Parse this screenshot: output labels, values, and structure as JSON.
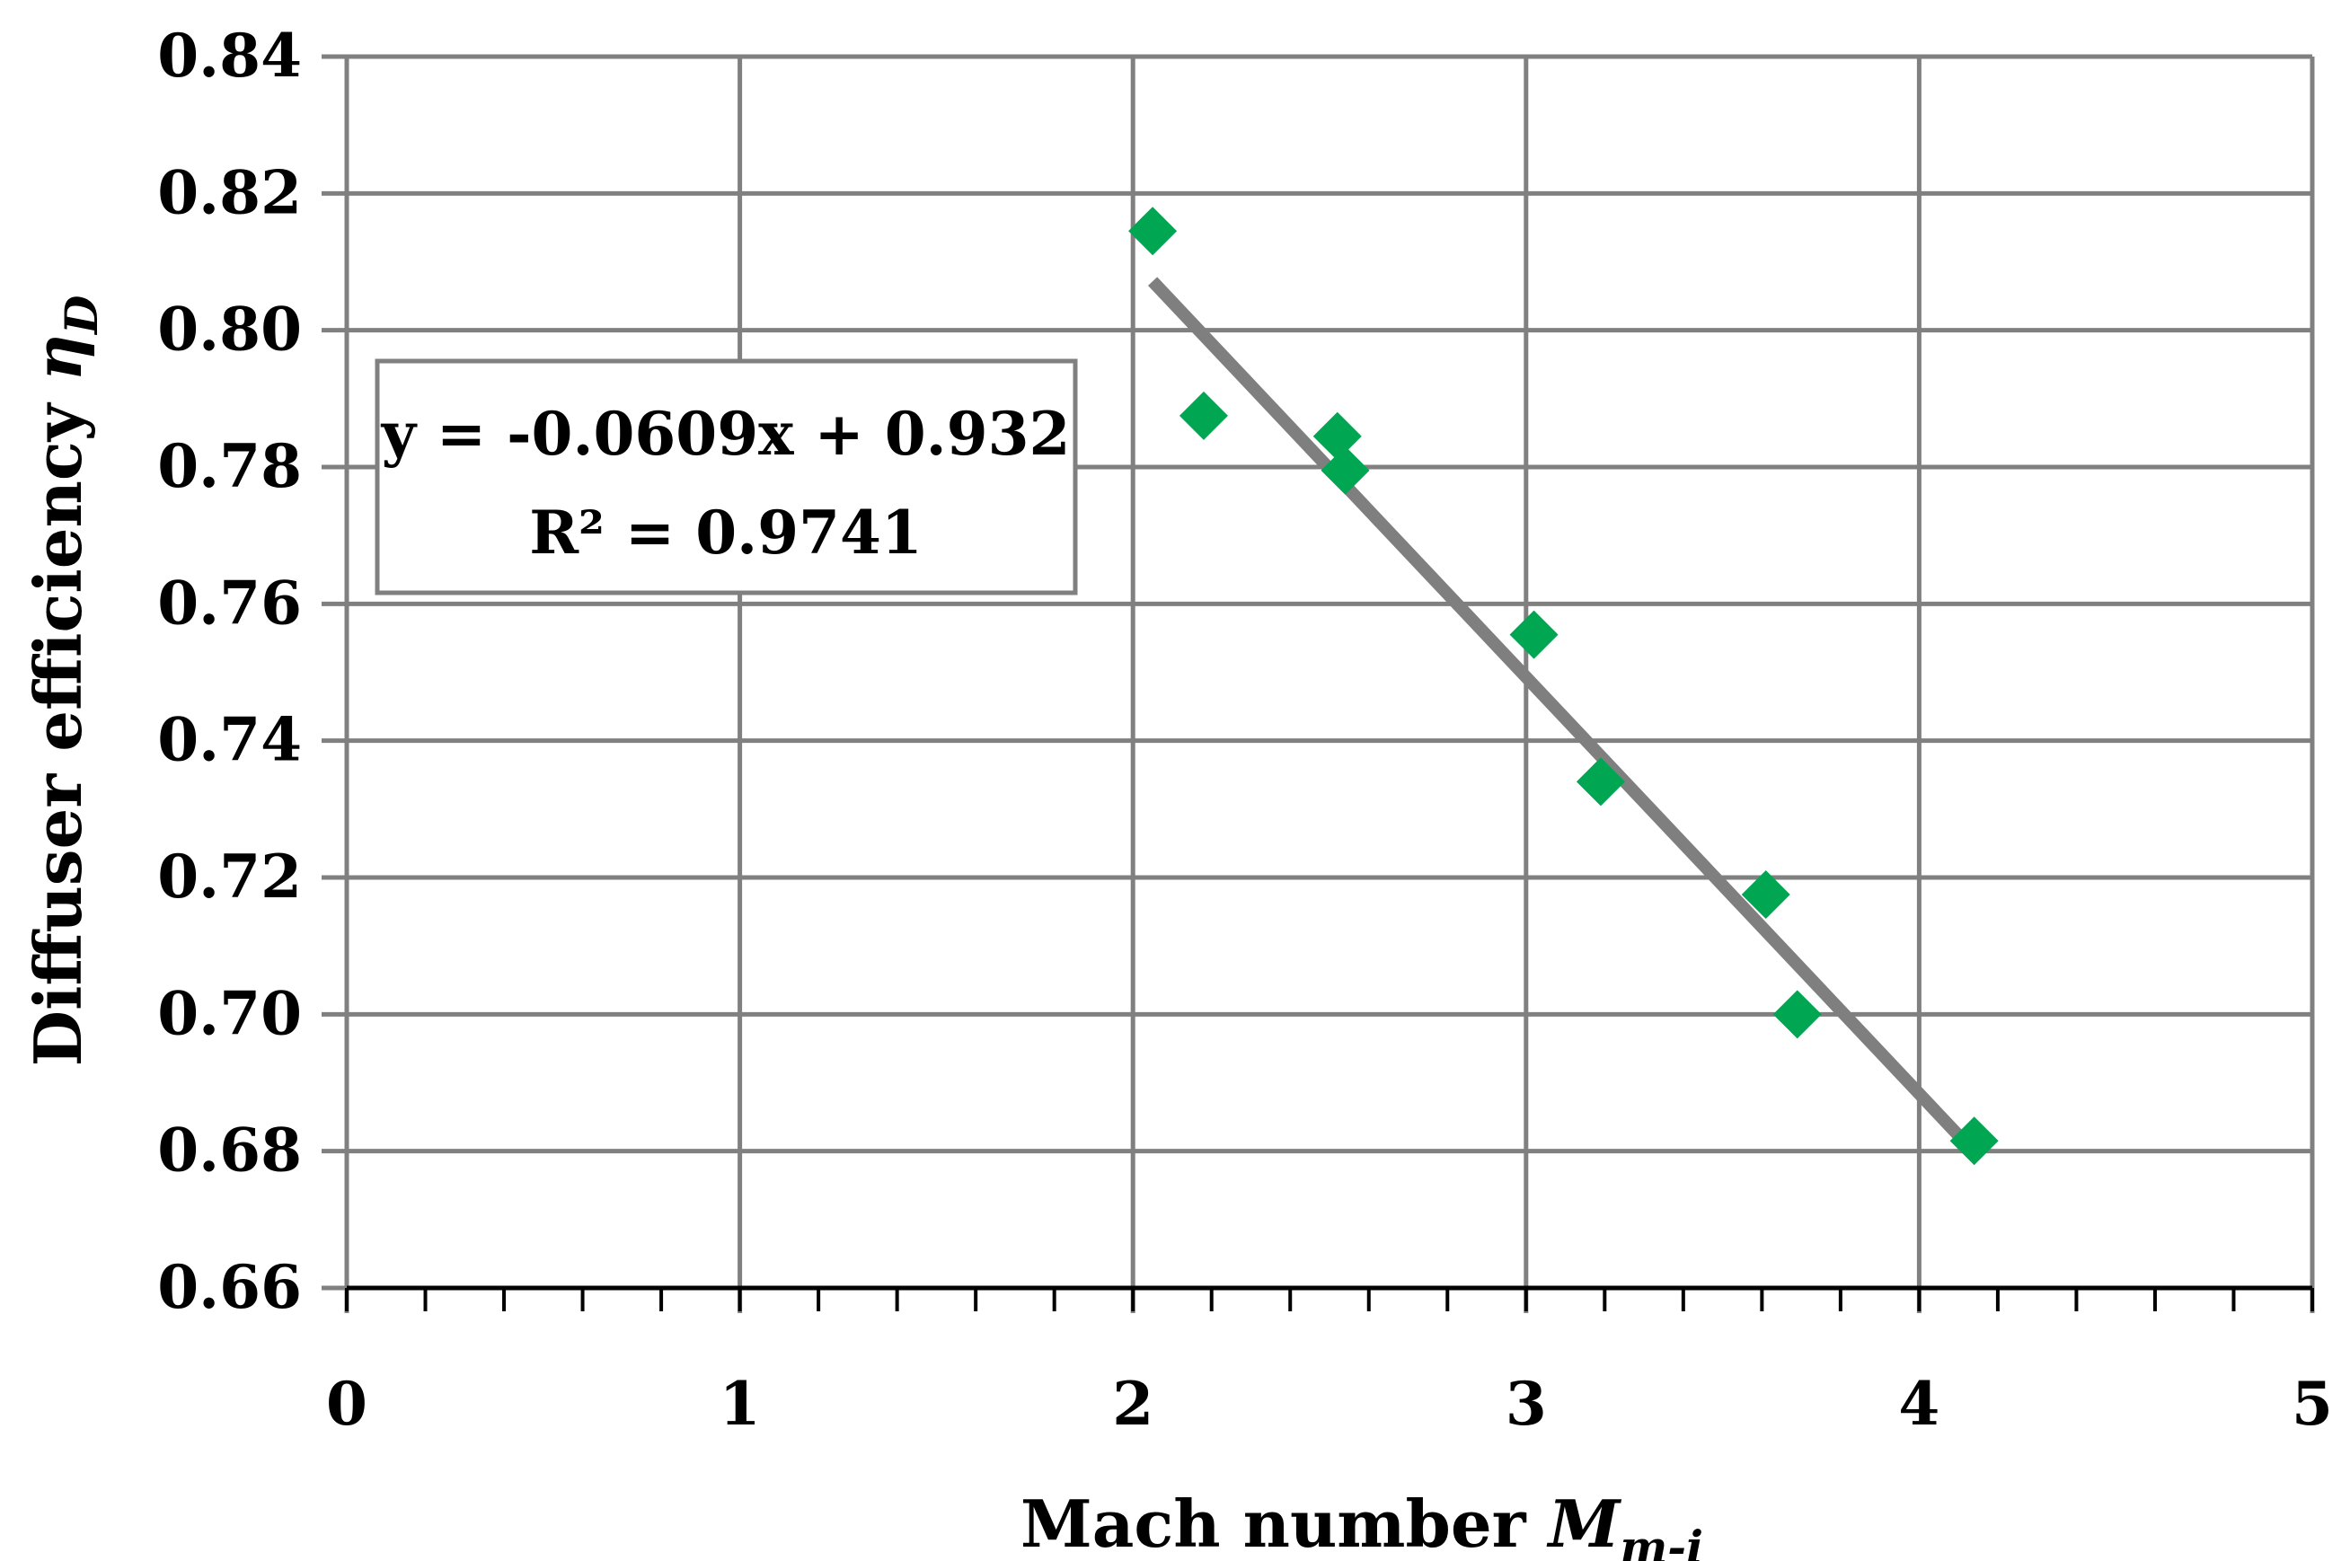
{
  "chart_data": {
    "type": "scatter",
    "title": "",
    "xlabel": {
      "main": "Mach number ",
      "symbol": "M",
      "subscript": "m-i"
    },
    "ylabel": {
      "main": "Diffuser efficiency ",
      "symbol": "η",
      "subscript": "D"
    },
    "xlim": [
      0,
      5
    ],
    "ylim": [
      0.66,
      0.84
    ],
    "x_ticks": [
      "0",
      "1",
      "2",
      "3",
      "4",
      "5"
    ],
    "y_ticks": [
      "0.66",
      "0.68",
      "0.70",
      "0.72",
      "0.74",
      "0.76",
      "0.78",
      "0.80",
      "0.82",
      "0.84"
    ],
    "grid": true,
    "points": [
      {
        "x": 2.05,
        "y": 0.8145
      },
      {
        "x": 2.18,
        "y": 0.7875
      },
      {
        "x": 2.52,
        "y": 0.7845
      },
      {
        "x": 2.54,
        "y": 0.7795
      },
      {
        "x": 3.02,
        "y": 0.7555
      },
      {
        "x": 3.19,
        "y": 0.734
      },
      {
        "x": 3.61,
        "y": 0.7175
      },
      {
        "x": 3.69,
        "y": 0.7
      },
      {
        "x": 4.14,
        "y": 0.6815
      }
    ],
    "trendline": {
      "slope": -0.0609,
      "intercept": 0.932,
      "x_start": 2.05,
      "x_end": 4.14
    },
    "annotation": {
      "equation": "y = -0.0609x + 0.932",
      "r_squared": "R² = 0.9741"
    },
    "colors": {
      "points": "#00A651",
      "trendline": "#7F7F7F",
      "grid": "#808080"
    }
  }
}
